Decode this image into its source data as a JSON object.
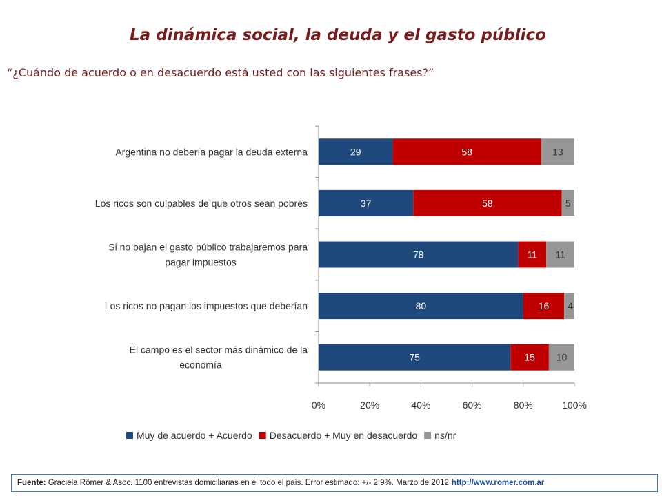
{
  "title": "La dinámica social, la deuda y el gasto público",
  "question": "“¿Cuándo de acuerdo o en desacuerdo está usted con las siguientes frases?”",
  "chart_data": {
    "type": "bar",
    "orientation": "horizontal",
    "stacked": true,
    "categories": [
      [
        "Argentina no debería pagar la deuda externa"
      ],
      [
        "Los ricos son culpables de que otros sean pobres"
      ],
      [
        "Si no bajan el gasto público trabajaremos para",
        "pagar impuestos"
      ],
      [
        "Los ricos no pagan los impuestos que deberían"
      ],
      [
        "El campo es el sector más dinámico de la",
        "economía"
      ]
    ],
    "series": [
      {
        "name": "Muy de acuerdo + Acuerdo",
        "color": "#1f497d",
        "values": [
          29,
          37,
          78,
          80,
          75
        ]
      },
      {
        "name": "Desacuerdo + Muy en desacuerdo",
        "color": "#c00000",
        "values": [
          58,
          58,
          11,
          16,
          15
        ]
      },
      {
        "name": "ns/nr",
        "color": "#969696",
        "values": [
          13,
          5,
          11,
          4,
          10
        ]
      }
    ],
    "xlim": [
      0,
      100
    ],
    "xticks": [
      "0%",
      "20%",
      "40%",
      "60%",
      "80%",
      "100%"
    ],
    "legend": "bottom",
    "grid": false
  },
  "footer": {
    "label": "Fuente:",
    "text": "Graciela Römer & Asoc. 1100 entrevistas domiciliarias en el todo el país. Error estimado: +/- 2,9%. Marzo de 2012",
    "url": "http://www.romer.com.ar"
  }
}
